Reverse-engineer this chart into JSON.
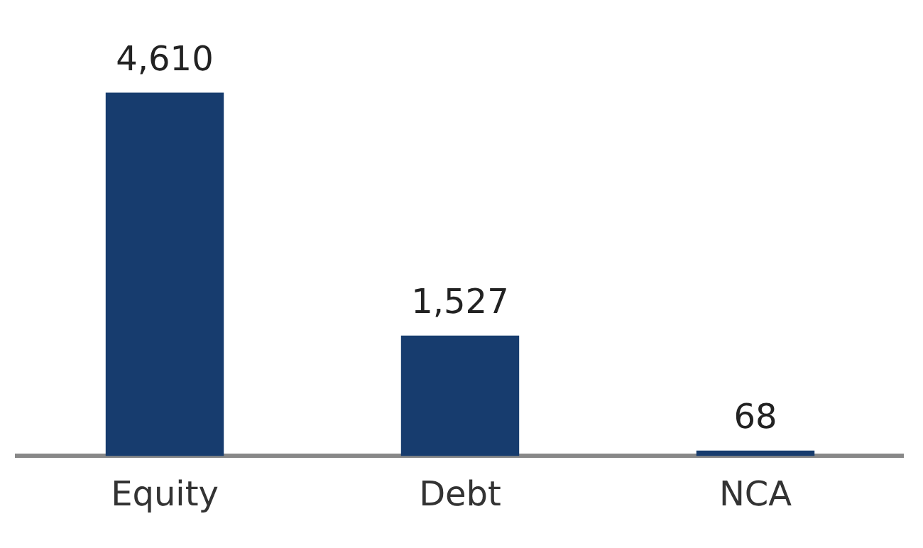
{
  "chart_data": {
    "type": "bar",
    "categories": [
      "Equity",
      "Debt",
      "NCA"
    ],
    "values": [
      4610,
      1527,
      68
    ],
    "value_labels": [
      "4,610",
      "1,527",
      "68"
    ],
    "color": "#173c6e",
    "grid": false,
    "legend": false
  }
}
